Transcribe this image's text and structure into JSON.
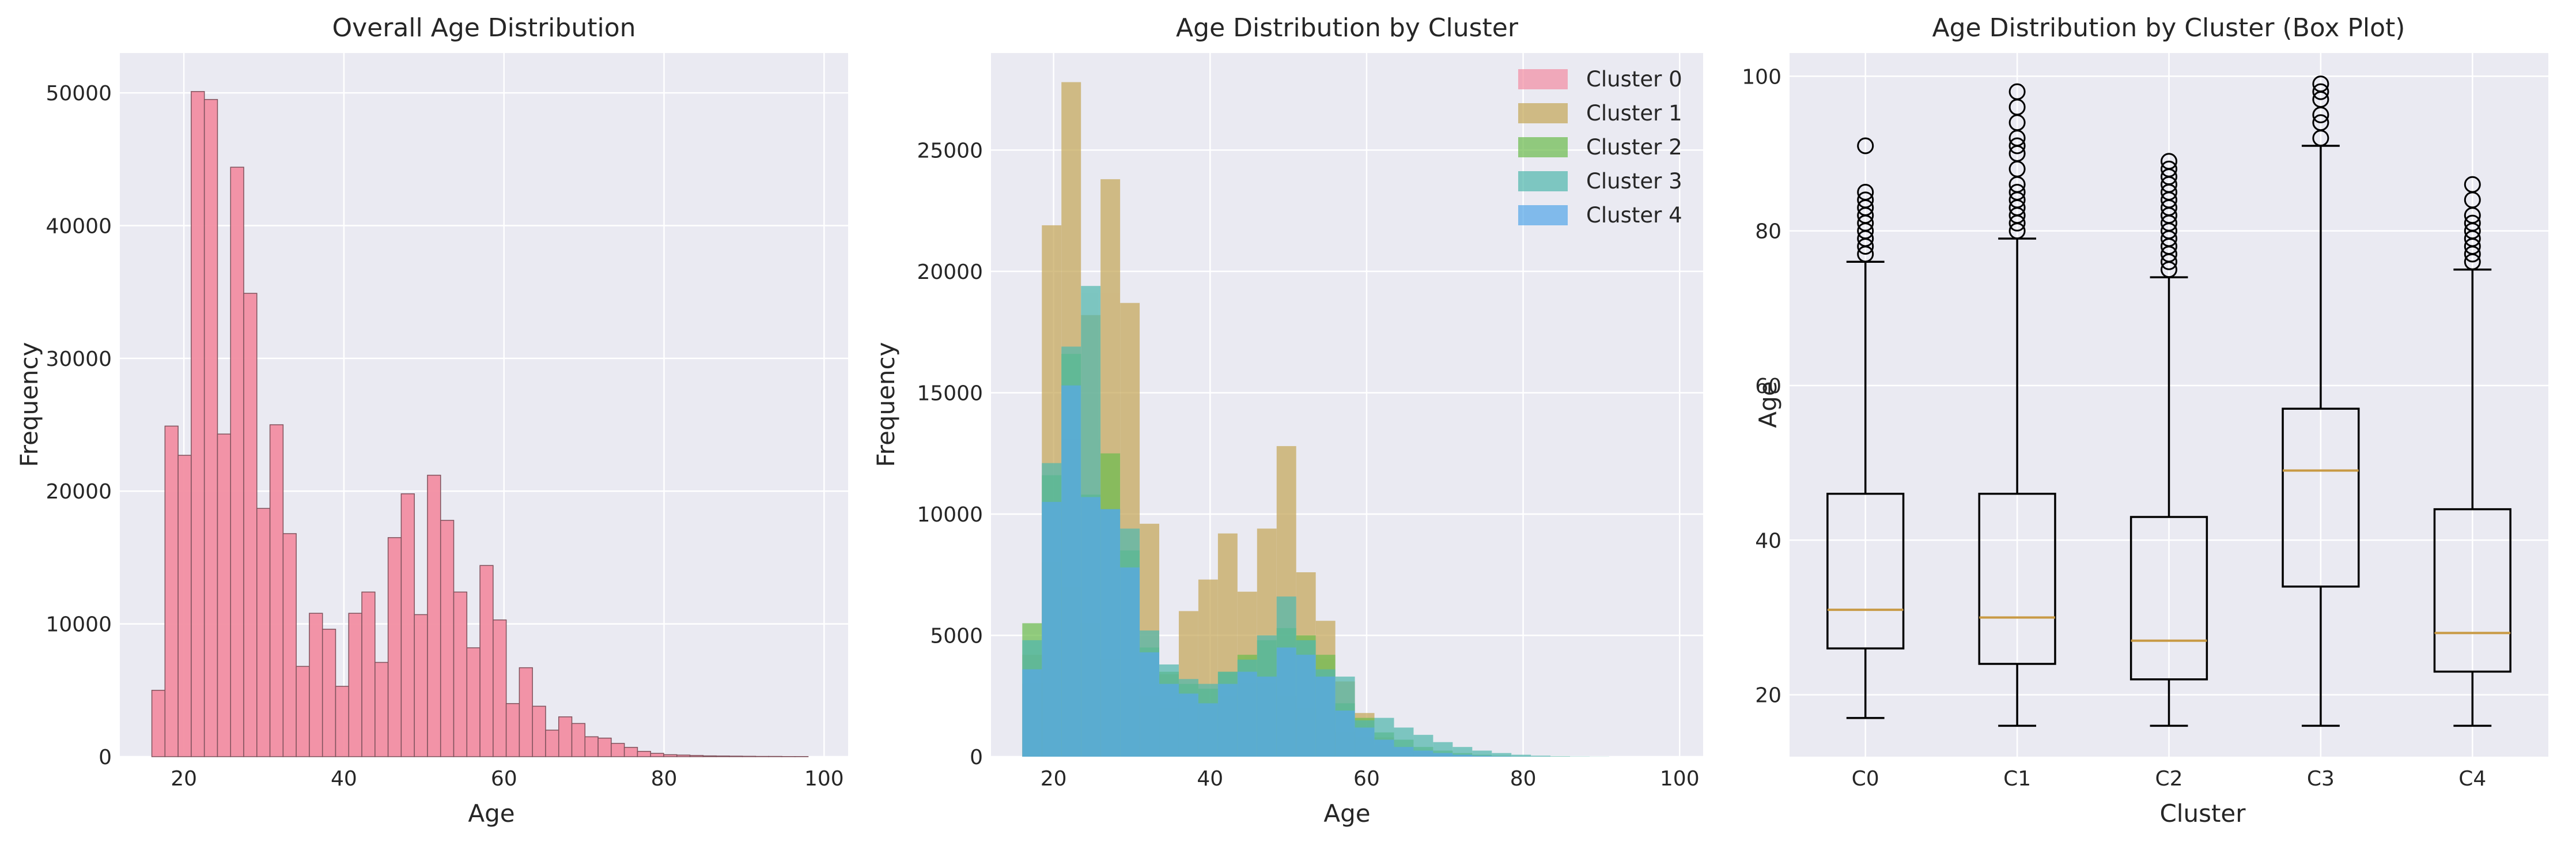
{
  "chart_data": [
    {
      "type": "bar",
      "title": "Overall Age Distribution",
      "xlabel": "Age",
      "ylabel": "Frequency",
      "xlim": [
        12,
        103
      ],
      "ylim": [
        0,
        53000
      ],
      "xticks": [
        20,
        40,
        60,
        80,
        100
      ],
      "yticks": [
        0,
        10000,
        20000,
        30000,
        40000,
        50000
      ],
      "grid": true,
      "color": "#f38fa3",
      "edge_color": "#7a4a55",
      "bin_width": 1.64,
      "bin_start": 16,
      "values": [
        5000,
        24900,
        22700,
        50100,
        49500,
        24300,
        44400,
        34900,
        18700,
        25000,
        16800,
        6800,
        10800,
        9600,
        5300,
        10800,
        12400,
        7100,
        16500,
        19800,
        10700,
        21200,
        17800,
        12400,
        8200,
        14400,
        10300,
        4000,
        6700,
        3800,
        2000,
        3000,
        2500,
        1500,
        1400,
        1000,
        700,
        400,
        250,
        150,
        120,
        90,
        60,
        50,
        40,
        30,
        20,
        20,
        10,
        10
      ]
    },
    {
      "type": "bar",
      "title": "Age Distribution by Cluster",
      "xlabel": "Age",
      "ylabel": "Frequency",
      "xlim": [
        12,
        103
      ],
      "ylim": [
        0,
        29000
      ],
      "xticks": [
        20,
        40,
        60,
        80,
        100
      ],
      "yticks": [
        0,
        5000,
        10000,
        15000,
        20000,
        25000
      ],
      "grid": true,
      "legend_position": "top-right",
      "series": [
        {
          "name": "Cluster 0",
          "color": "#f38fa3",
          "bin_start": 16,
          "bin_width": 2.5,
          "values": [
            3000,
            8000,
            7000,
            5500,
            4000,
            3000,
            2500,
            2000,
            1500,
            2000,
            2500,
            3000,
            3000,
            2500,
            2000,
            1500,
            1000,
            800,
            500,
            300,
            200,
            100,
            60,
            30,
            20,
            10,
            5,
            3,
            2,
            1,
            0,
            0,
            0,
            0
          ]
        },
        {
          "name": "Cluster 1",
          "color": "#c5a759",
          "bin_start": 16,
          "bin_width": 2.5,
          "values": [
            4200,
            21900,
            27800,
            18200,
            23800,
            18700,
            9600,
            3400,
            6000,
            7300,
            9200,
            6800,
            9400,
            12800,
            7600,
            5600,
            3100,
            1800,
            800,
            400,
            200,
            100,
            50,
            20,
            10,
            5,
            0,
            0,
            0,
            0,
            0,
            0,
            0,
            0
          ]
        },
        {
          "name": "Cluster 2",
          "color": "#6dbd4f",
          "bin_start": 16,
          "bin_width": 2.5,
          "values": [
            5500,
            11600,
            16600,
            10800,
            12500,
            8500,
            4500,
            3500,
            3000,
            2800,
            3500,
            4200,
            4800,
            5300,
            5000,
            4200,
            2200,
            1600,
            1000,
            700,
            400,
            250,
            150,
            80,
            40,
            20,
            10,
            5,
            0,
            0,
            0,
            0,
            0,
            0
          ]
        },
        {
          "name": "Cluster 3",
          "color": "#53b8ad",
          "bin_start": 16,
          "bin_width": 2.5,
          "values": [
            4800,
            12100,
            16900,
            19400,
            10200,
            9400,
            5200,
            3800,
            3200,
            3000,
            3500,
            4000,
            5000,
            6600,
            4800,
            3600,
            3300,
            1500,
            1600,
            1200,
            900,
            600,
            400,
            250,
            150,
            80,
            40,
            20,
            10,
            5,
            0,
            0,
            0,
            0
          ]
        },
        {
          "name": "Cluster 4",
          "color": "#58a8e8",
          "bin_start": 16,
          "bin_width": 2.5,
          "values": [
            3600,
            10500,
            15300,
            10700,
            10200,
            7800,
            4300,
            3000,
            2600,
            2200,
            3000,
            3500,
            3300,
            4500,
            4200,
            3300,
            1900,
            1200,
            700,
            400,
            250,
            150,
            80,
            40,
            20,
            10,
            5,
            0,
            0,
            0,
            0,
            0,
            0,
            0
          ]
        }
      ]
    },
    {
      "type": "box",
      "title": "Age Distribution by Cluster (Box Plot)",
      "xlabel": "Cluster",
      "ylabel": "Age",
      "ylim": [
        12,
        103
      ],
      "yticks": [
        20,
        40,
        60,
        80,
        100
      ],
      "grid": true,
      "median_color": "#c89a45",
      "categories": [
        "C0",
        "C1",
        "C2",
        "C3",
        "C4"
      ],
      "boxes": [
        {
          "min": 17,
          "q1": 26,
          "median": 31,
          "q3": 46,
          "max": 76,
          "outliers": [
            77,
            78,
            79,
            80,
            81,
            82,
            83,
            84,
            85,
            91
          ]
        },
        {
          "min": 16,
          "q1": 24,
          "median": 30,
          "q3": 46,
          "max": 79,
          "outliers": [
            80,
            81,
            82,
            83,
            84,
            85,
            86,
            88,
            90,
            91,
            92,
            94,
            96,
            98
          ]
        },
        {
          "min": 16,
          "q1": 22,
          "median": 27,
          "q3": 43,
          "max": 74,
          "outliers": [
            75,
            76,
            77,
            78,
            79,
            80,
            81,
            82,
            83,
            84,
            85,
            86,
            87,
            88,
            89
          ]
        },
        {
          "min": 16,
          "q1": 34,
          "median": 49,
          "q3": 57,
          "max": 91,
          "outliers": [
            92,
            94,
            95,
            97,
            98,
            99
          ]
        },
        {
          "min": 16,
          "q1": 23,
          "median": 28,
          "q3": 44,
          "max": 75,
          "outliers": [
            76,
            77,
            78,
            79,
            80,
            81,
            82,
            84,
            86
          ]
        }
      ]
    }
  ]
}
